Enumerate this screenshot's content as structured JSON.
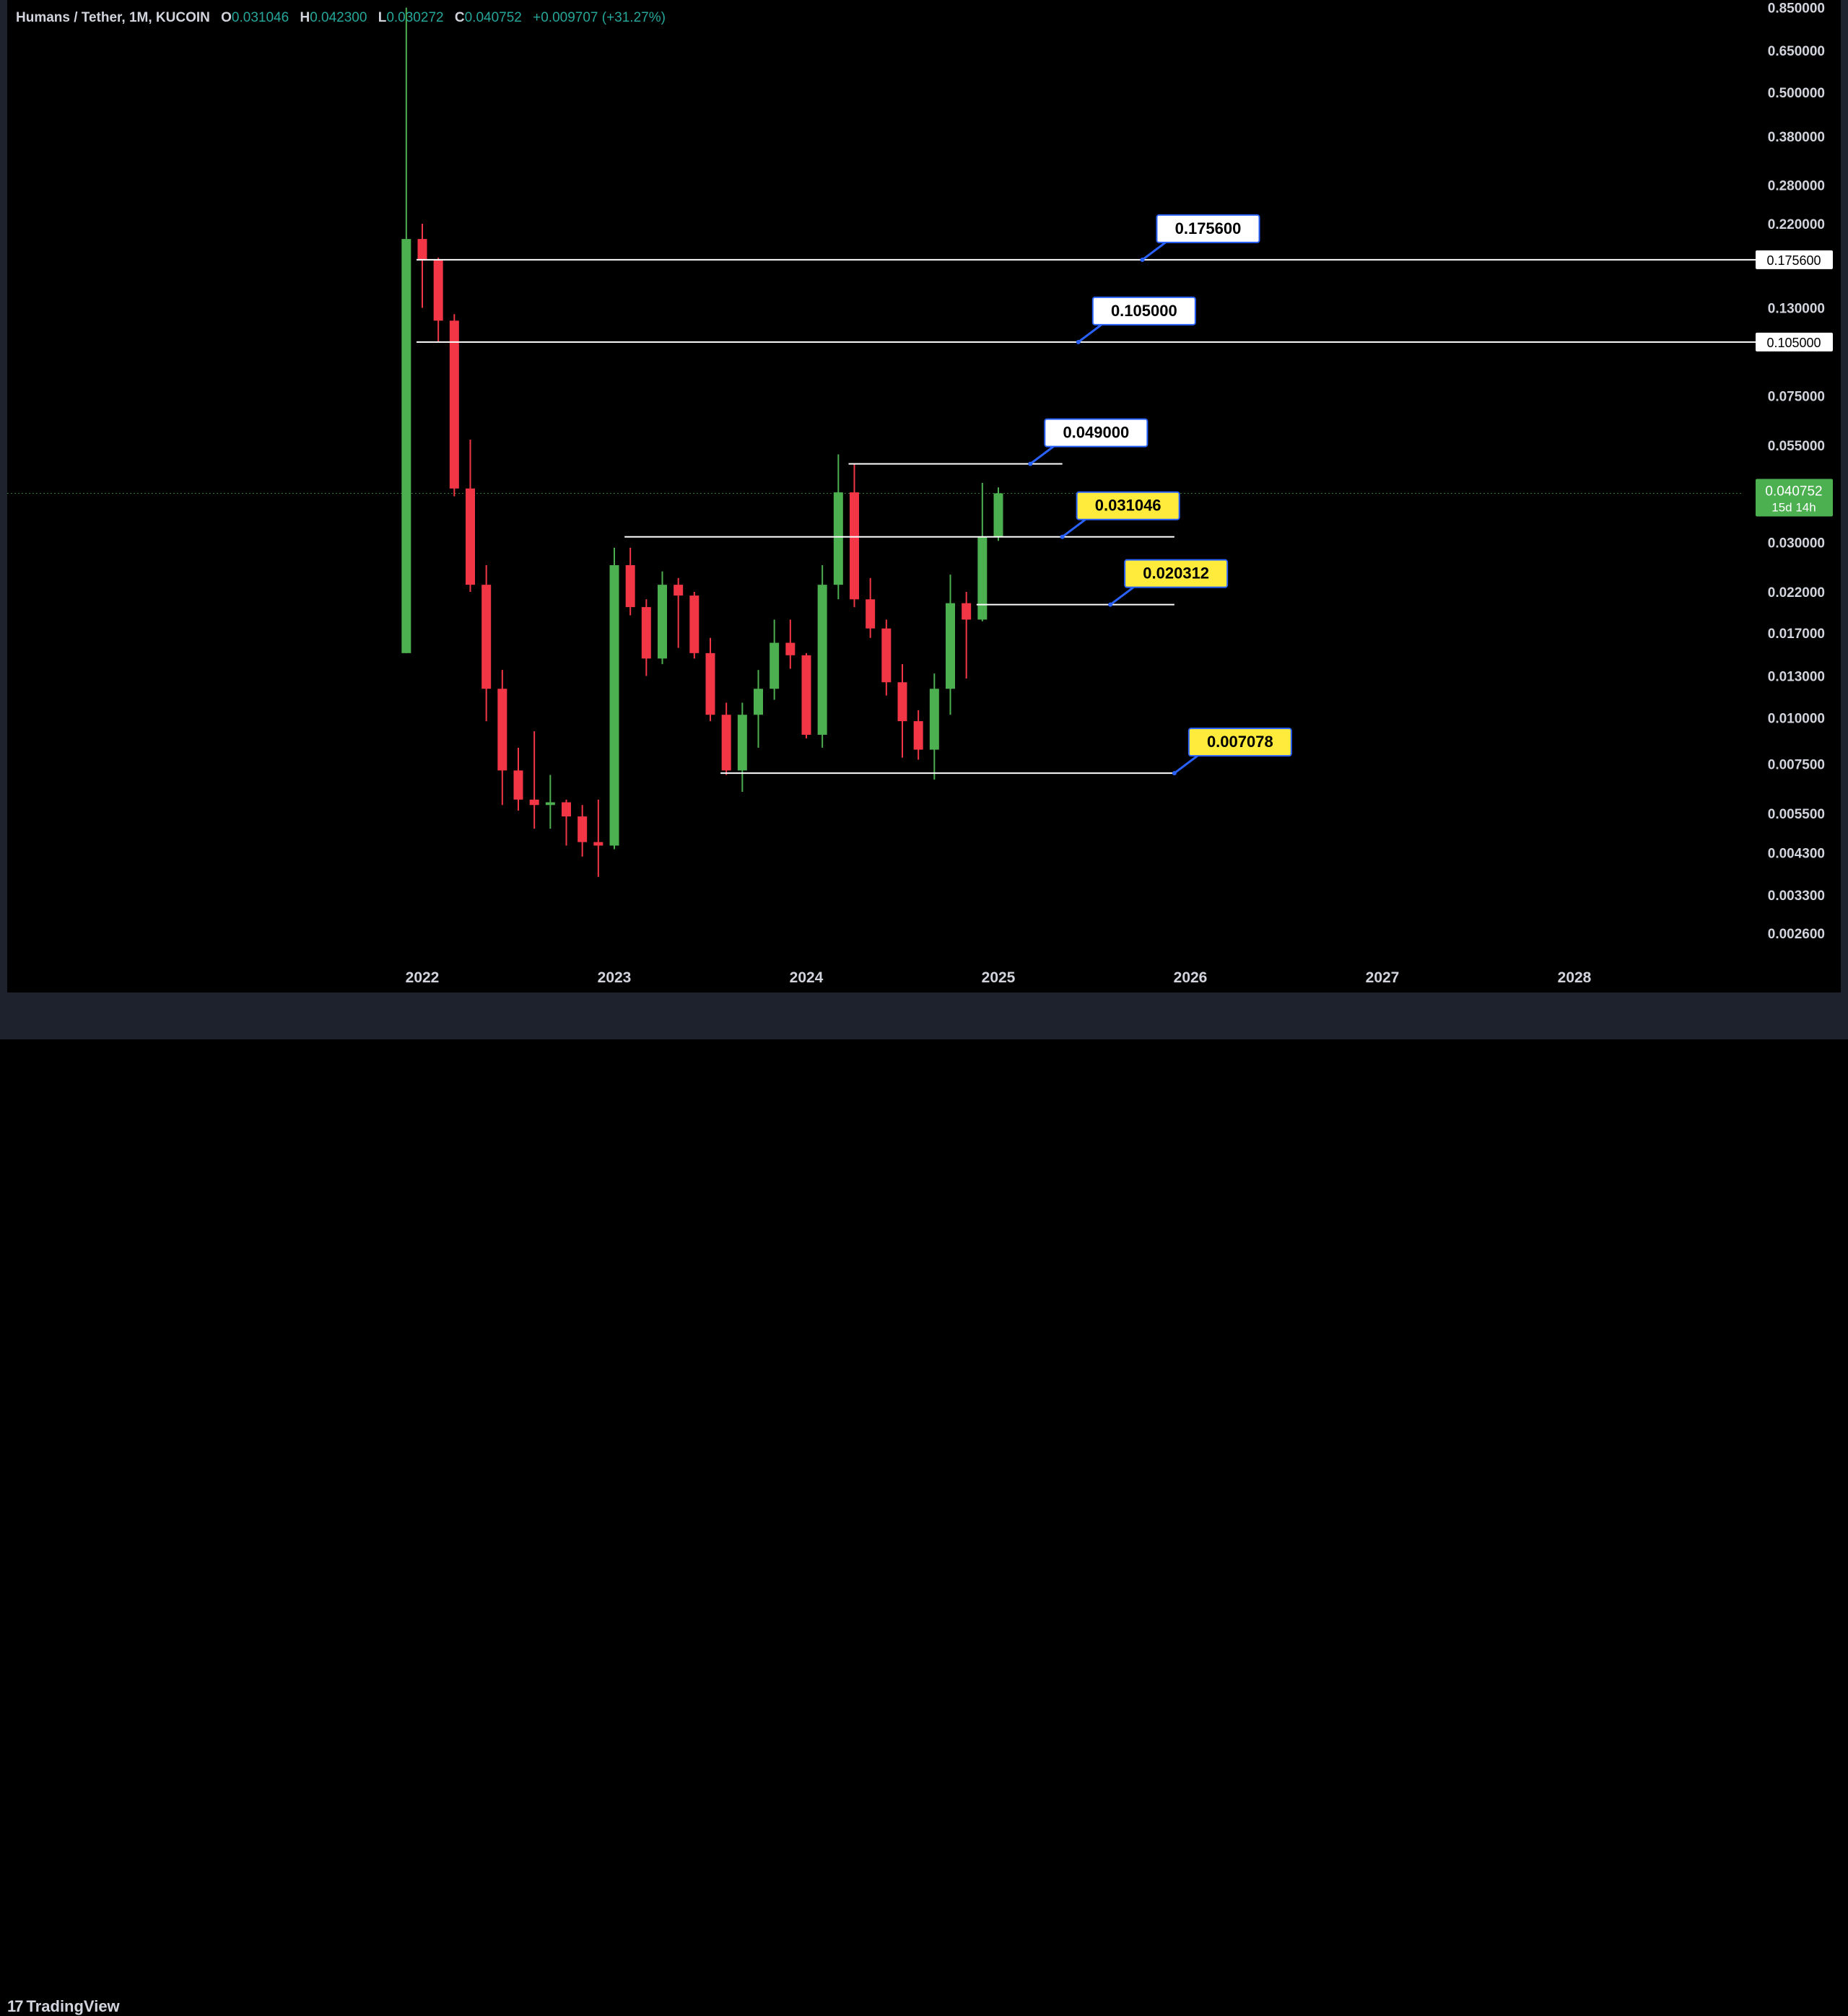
{
  "legend": {
    "symbol": "Humans / Tether, 1M, KUCOIN",
    "o_label": "O",
    "o_value": "0.031046",
    "h_label": "H",
    "h_value": "0.042300",
    "l_label": "L",
    "l_value": "0.030272",
    "c_label": "C",
    "c_value": "0.040752",
    "change": "+0.009707 (+31.27%)"
  },
  "footer": {
    "brand": "TradingView",
    "brand_mark": "17"
  },
  "chart_data": {
    "type": "candlestick",
    "scale": "log",
    "y_ticks": [
      "0.850000",
      "0.650000",
      "0.500000",
      "0.380000",
      "0.280000",
      "0.220000",
      "0.130000",
      "0.075000",
      "0.055000",
      "0.030000",
      "0.022000",
      "0.017000",
      "0.013000",
      "0.010000",
      "0.007500",
      "0.005500",
      "0.004300",
      "0.003300",
      "0.002600"
    ],
    "x_ticks": [
      {
        "label": "2022",
        "t": "2022-01"
      },
      {
        "label": "2023",
        "t": "2023-01"
      },
      {
        "label": "2024",
        "t": "2024-01"
      },
      {
        "label": "2025",
        "t": "2025-01"
      },
      {
        "label": "2026",
        "t": "2026-01"
      },
      {
        "label": "2027",
        "t": "2027-01"
      },
      {
        "label": "2028",
        "t": "2028-01"
      }
    ],
    "last_price": {
      "value": "0.040752",
      "countdown": "15d 14h",
      "color": "#4caf50"
    },
    "colors": {
      "up": "#4caf50",
      "down": "#f23645"
    },
    "candles": [
      {
        "t": "2021-12",
        "o": 0.015,
        "h": 0.85,
        "l": 0.015,
        "c": 0.2
      },
      {
        "t": "2022-01",
        "o": 0.2,
        "h": 0.22,
        "l": 0.13,
        "c": 0.175
      },
      {
        "t": "2022-02",
        "o": 0.175,
        "h": 0.178,
        "l": 0.105,
        "c": 0.12
      },
      {
        "t": "2022-03",
        "o": 0.12,
        "h": 0.125,
        "l": 0.04,
        "c": 0.042
      },
      {
        "t": "2022-04",
        "o": 0.042,
        "h": 0.057,
        "l": 0.022,
        "c": 0.023
      },
      {
        "t": "2022-05",
        "o": 0.023,
        "h": 0.026,
        "l": 0.0098,
        "c": 0.012
      },
      {
        "t": "2022-06",
        "o": 0.012,
        "h": 0.0135,
        "l": 0.0058,
        "c": 0.0072
      },
      {
        "t": "2022-07",
        "o": 0.0072,
        "h": 0.0083,
        "l": 0.0056,
        "c": 0.006
      },
      {
        "t": "2022-08",
        "o": 0.006,
        "h": 0.0092,
        "l": 0.005,
        "c": 0.0058
      },
      {
        "t": "2022-09",
        "o": 0.0058,
        "h": 0.007,
        "l": 0.005,
        "c": 0.0059
      },
      {
        "t": "2022-10",
        "o": 0.0059,
        "h": 0.006,
        "l": 0.0045,
        "c": 0.0054
      },
      {
        "t": "2022-11",
        "o": 0.0054,
        "h": 0.0058,
        "l": 0.0042,
        "c": 0.0046
      },
      {
        "t": "2022-12",
        "o": 0.0046,
        "h": 0.006,
        "l": 0.0037,
        "c": 0.0045
      },
      {
        "t": "2023-01",
        "o": 0.0045,
        "h": 0.029,
        "l": 0.0044,
        "c": 0.026
      },
      {
        "t": "2023-02",
        "o": 0.026,
        "h": 0.029,
        "l": 0.019,
        "c": 0.02
      },
      {
        "t": "2023-03",
        "o": 0.02,
        "h": 0.021,
        "l": 0.013,
        "c": 0.0145
      },
      {
        "t": "2023-04",
        "o": 0.0145,
        "h": 0.025,
        "l": 0.014,
        "c": 0.023
      },
      {
        "t": "2023-05",
        "o": 0.023,
        "h": 0.024,
        "l": 0.0155,
        "c": 0.0215
      },
      {
        "t": "2023-06",
        "o": 0.0215,
        "h": 0.022,
        "l": 0.0145,
        "c": 0.015
      },
      {
        "t": "2023-07",
        "o": 0.015,
        "h": 0.0165,
        "l": 0.0098,
        "c": 0.0102
      },
      {
        "t": "2023-08",
        "o": 0.0102,
        "h": 0.011,
        "l": 0.007,
        "c": 0.0072
      },
      {
        "t": "2023-09",
        "o": 0.0072,
        "h": 0.011,
        "l": 0.0063,
        "c": 0.0102
      },
      {
        "t": "2023-10",
        "o": 0.0102,
        "h": 0.0135,
        "l": 0.0083,
        "c": 0.012
      },
      {
        "t": "2023-11",
        "o": 0.012,
        "h": 0.0185,
        "l": 0.0112,
        "c": 0.016
      },
      {
        "t": "2023-12",
        "o": 0.016,
        "h": 0.0185,
        "l": 0.0136,
        "c": 0.0148
      },
      {
        "t": "2024-01",
        "o": 0.0148,
        "h": 0.015,
        "l": 0.0088,
        "c": 0.009
      },
      {
        "t": "2024-02",
        "o": 0.009,
        "h": 0.026,
        "l": 0.0083,
        "c": 0.023
      },
      {
        "t": "2024-03",
        "o": 0.023,
        "h": 0.052,
        "l": 0.021,
        "c": 0.041
      },
      {
        "t": "2024-04",
        "o": 0.041,
        "h": 0.049,
        "l": 0.02,
        "c": 0.021
      },
      {
        "t": "2024-05",
        "o": 0.021,
        "h": 0.024,
        "l": 0.0165,
        "c": 0.0175
      },
      {
        "t": "2024-06",
        "o": 0.0175,
        "h": 0.0185,
        "l": 0.0115,
        "c": 0.0125
      },
      {
        "t": "2024-07",
        "o": 0.0125,
        "h": 0.014,
        "l": 0.0078,
        "c": 0.0098
      },
      {
        "t": "2024-08",
        "o": 0.0098,
        "h": 0.0105,
        "l": 0.0077,
        "c": 0.0082
      },
      {
        "t": "2024-09",
        "o": 0.0082,
        "h": 0.0132,
        "l": 0.0068,
        "c": 0.012
      },
      {
        "t": "2024-10",
        "o": 0.012,
        "h": 0.0245,
        "l": 0.0102,
        "c": 0.0205
      },
      {
        "t": "2024-11",
        "o": 0.0205,
        "h": 0.022,
        "l": 0.0128,
        "c": 0.0185
      },
      {
        "t": "2024-12",
        "o": 0.0185,
        "h": 0.0435,
        "l": 0.0183,
        "c": 0.031046
      },
      {
        "t": "2025-01",
        "o": 0.031046,
        "h": 0.0423,
        "l": 0.030272,
        "c": 0.040752
      }
    ],
    "levels": [
      {
        "label": "0.175600",
        "value": 0.1756,
        "from": "2022-01",
        "to": "2028-12",
        "callout_at": "2025-10",
        "style": "white",
        "axis_tag": "0.175600"
      },
      {
        "label": "0.105000",
        "value": 0.105,
        "from": "2022-01",
        "to": "2028-12",
        "callout_at": "2025-06",
        "style": "white",
        "axis_tag": "0.105000"
      },
      {
        "label": "0.049000",
        "value": 0.049,
        "from": "2024-04",
        "to": "2025-05",
        "callout_at": "2025-03",
        "style": "white"
      },
      {
        "label": "0.031046",
        "value": 0.031046,
        "from": "2023-02",
        "to": "2025-12",
        "callout_at": "2025-05",
        "style": "yellow"
      },
      {
        "label": "0.020312",
        "value": 0.020312,
        "from": "2024-12",
        "to": "2025-12",
        "callout_at": "2025-08",
        "style": "yellow"
      },
      {
        "label": "0.007078",
        "value": 0.007078,
        "from": "2023-08",
        "to": "2025-12",
        "callout_at": "2025-12",
        "style": "yellow"
      }
    ]
  }
}
